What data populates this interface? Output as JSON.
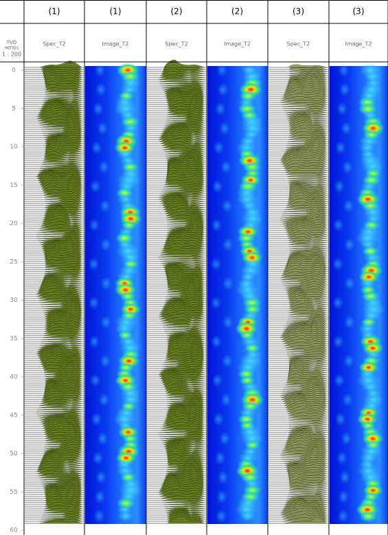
{
  "depth_header": {
    "label": "TVD",
    "unit": "METRES",
    "scale": "1 : 200"
  },
  "depth_ticks": [
    0,
    5,
    10,
    15,
    20,
    25,
    30,
    35,
    40,
    45,
    50,
    55,
    60
  ],
  "tracks": [
    {
      "run": "(1)",
      "name": "Spec_T2",
      "kind": "spectrum"
    },
    {
      "run": "(1)",
      "name": "Image_T2",
      "kind": "image"
    },
    {
      "run": "(2)",
      "name": "Spec_T2",
      "kind": "spectrum"
    },
    {
      "run": "(2)",
      "name": "Image_T2",
      "kind": "image"
    },
    {
      "run": "(3)",
      "name": "Spec_T2",
      "kind": "spectrum"
    },
    {
      "run": "(3)",
      "name": "Image_T2",
      "kind": "image"
    }
  ]
}
